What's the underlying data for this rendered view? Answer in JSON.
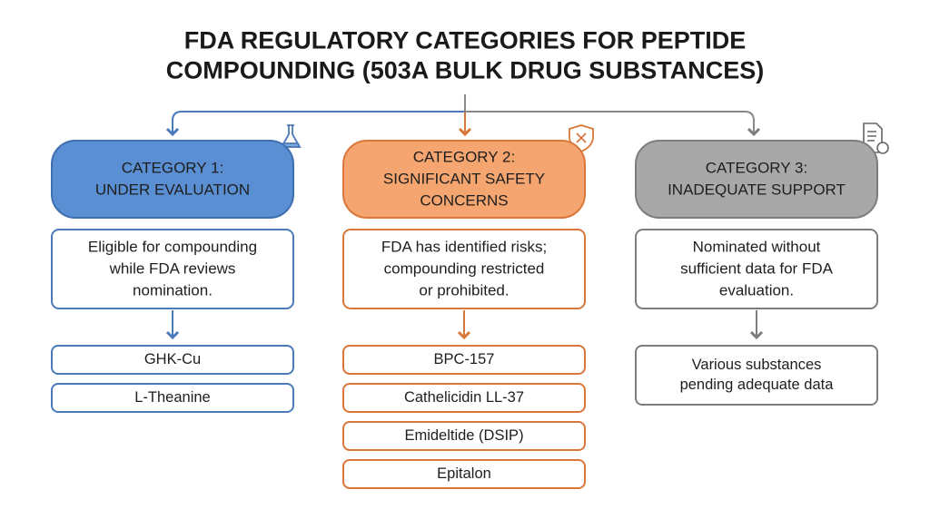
{
  "title": [
    "FDA REGULATORY CATEGORIES FOR PEPTIDE",
    "COMPOUNDING (503A BULK DRUG SUBSTANCES)"
  ],
  "columns": [
    {
      "header": [
        "CATEGORY 1:",
        "UNDER EVALUATION"
      ],
      "description": [
        "Eligible for compounding",
        "while FDA reviews",
        "nomination."
      ],
      "items": [
        [
          "GHK-Cu"
        ],
        [
          "L-Theanine"
        ]
      ]
    },
    {
      "header": [
        "CATEGORY 2:",
        "SIGNIFICANT SAFETY",
        "CONCERNS"
      ],
      "description": [
        "FDA has identified risks;",
        "compounding restricted",
        "or prohibited."
      ],
      "items": [
        [
          "BPC-157"
        ],
        [
          "Cathelicidin LL-37"
        ],
        [
          "Emideltide (DSIP)"
        ],
        [
          "Epitalon"
        ]
      ]
    },
    {
      "header": [
        "CATEGORY 3:",
        "INADEQUATE SUPPORT"
      ],
      "description": [
        "Nominated without",
        "sufficient data for FDA",
        "evaluation."
      ],
      "items": [
        [
          "Various substances",
          "pending adequate data"
        ]
      ]
    }
  ]
}
